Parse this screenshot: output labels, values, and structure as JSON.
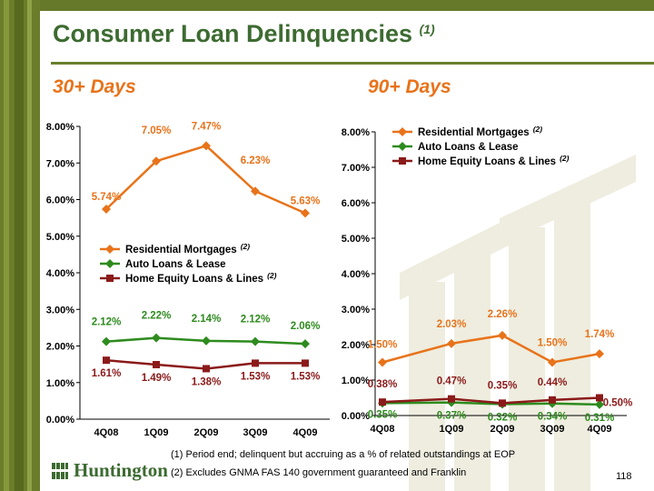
{
  "title": {
    "text": "Consumer Loan Delinquencies",
    "note": "(1)"
  },
  "left_subhead": "30+ Days",
  "right_subhead": "90+ Days",
  "footnotes": [
    "(1)  Period end; delinquent but accruing as a % of related outstandings at EOP",
    "(2)  Excludes GNMA FAS 140 government guaranteed and Franklin"
  ],
  "page_number": "118",
  "logo_text": "Huntington",
  "colors": {
    "residential": "#e8731a",
    "auto": "#2e8b1e",
    "heloc": "#8b1a1a",
    "title": "#3d6b31",
    "subhead": "#e8731a"
  },
  "chart_data": [
    {
      "type": "line",
      "categories": [
        "4Q08",
        "1Q09",
        "2Q09",
        "3Q09",
        "4Q09"
      ],
      "y_ticks": [
        "0.00%",
        "1.00%",
        "2.00%",
        "3.00%",
        "4.00%",
        "5.00%",
        "6.00%",
        "7.00%",
        "8.00%"
      ],
      "ylim": [
        0,
        8
      ],
      "legend_position": "middle-right",
      "series": [
        {
          "name": "Residential Mortgages",
          "note": "(2)",
          "values": [
            5.74,
            7.05,
            7.47,
            6.23,
            5.63
          ],
          "labels": [
            "5.74%",
            "7.05%",
            "7.47%",
            "6.23%",
            "5.63%"
          ],
          "color": "#e8731a",
          "marker": "diamond"
        },
        {
          "name": "Auto Loans & Lease",
          "note": "",
          "values": [
            2.12,
            2.22,
            2.14,
            2.12,
            2.06
          ],
          "labels": [
            "2.12%",
            "2.22%",
            "2.14%",
            "2.12%",
            "2.06%"
          ],
          "color": "#2e8b1e",
          "marker": "diamond"
        },
        {
          "name": "Home Equity Loans & Lines",
          "note": "(2)",
          "values": [
            1.61,
            1.49,
            1.38,
            1.53,
            1.53
          ],
          "labels": [
            "1.61%",
            "1.49%",
            "1.38%",
            "1.53%",
            "1.53%"
          ],
          "color": "#8b1a1a",
          "marker": "square"
        }
      ]
    },
    {
      "type": "line",
      "categories": [
        "4Q08",
        "1Q09",
        "2Q09",
        "3Q09",
        "4Q09"
      ],
      "y_ticks": [
        "0.00%",
        "1.00%",
        "2.00%",
        "3.00%",
        "4.00%",
        "5.00%",
        "6.00%",
        "7.00%",
        "8.00%"
      ],
      "ylim": [
        0,
        8
      ],
      "legend_position": "top-left",
      "series": [
        {
          "name": "Residential Mortgages",
          "note": "(2)",
          "values": [
            1.5,
            2.03,
            2.26,
            1.5,
            1.74
          ],
          "labels": [
            "1.50%",
            "2.03%",
            "2.26%",
            "1.50%",
            "1.74%"
          ],
          "color": "#e8731a",
          "marker": "diamond"
        },
        {
          "name": "Auto Loans & Lease",
          "note": "",
          "values": [
            0.35,
            0.37,
            0.32,
            0.34,
            0.31
          ],
          "labels": [
            "0.35%",
            "0.37%",
            "0.32%",
            "0.34%",
            "0.31%"
          ],
          "color": "#2e8b1e",
          "marker": "diamond"
        },
        {
          "name": "Home Equity Loans & Lines",
          "note": "(2)",
          "values": [
            0.38,
            0.47,
            0.35,
            0.44,
            0.5
          ],
          "labels": [
            "0.38%",
            "0.47%",
            "0.35%",
            "0.44%",
            "0.50%"
          ],
          "color": "#8b1a1a",
          "marker": "square"
        }
      ]
    }
  ]
}
